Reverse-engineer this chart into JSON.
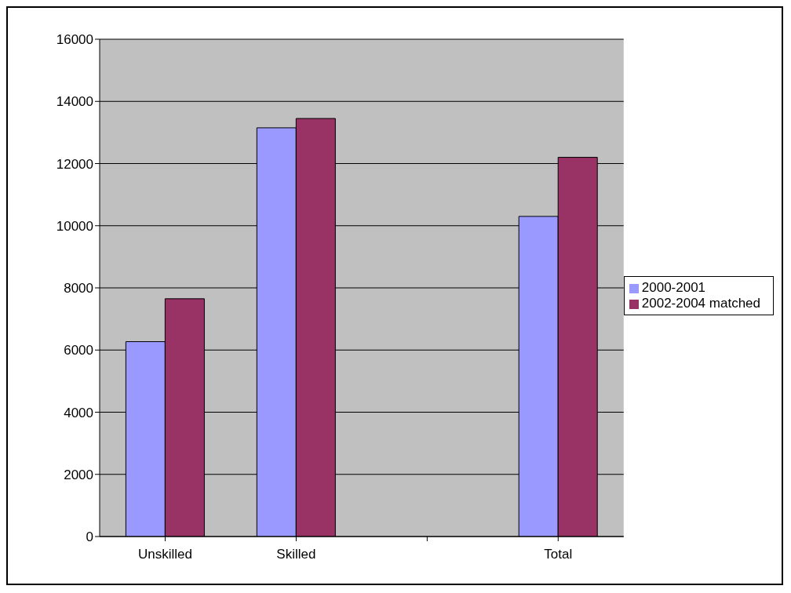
{
  "chart_data": {
    "type": "bar",
    "categories": [
      "Unskilled",
      "Skilled",
      null,
      "Total"
    ],
    "series": [
      {
        "name": "2000-2001",
        "color": "#9999ff",
        "values": [
          6270,
          13150,
          null,
          10300
        ]
      },
      {
        "name": "2002-2004 matched",
        "color": "#993366",
        "values": [
          7650,
          13450,
          null,
          12200
        ]
      }
    ],
    "ylim": [
      0,
      16000
    ],
    "yticks": [
      0,
      2000,
      4000,
      6000,
      8000,
      10000,
      12000,
      14000,
      16000
    ],
    "grid": "y",
    "legend": "right"
  }
}
